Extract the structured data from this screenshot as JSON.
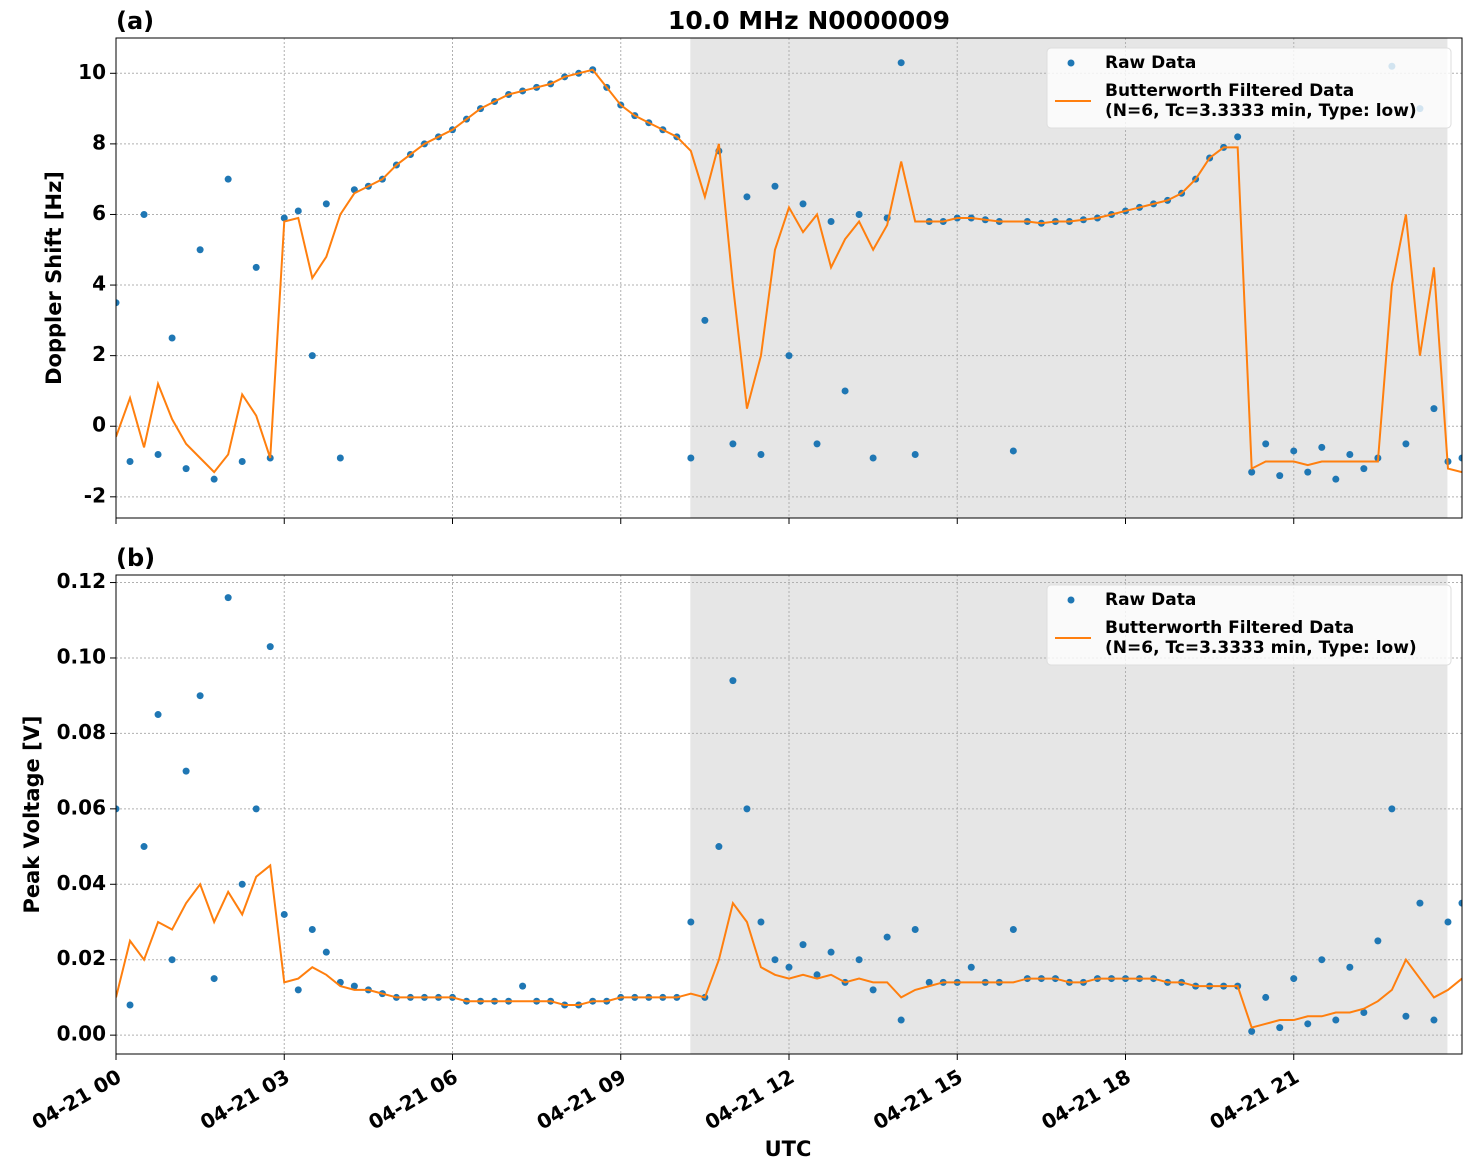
{
  "chart_data": [
    {
      "type": "line",
      "panel_label": "(a)",
      "title": "10.0 MHz N0000009",
      "ylabel": "Doppler Shift [Hz]",
      "xlim": [
        0,
        24
      ],
      "xticks": [
        0,
        3,
        6,
        9,
        12,
        15,
        18,
        21
      ],
      "ylim": [
        -2.6,
        11
      ],
      "yticks": [
        -2,
        0,
        2,
        4,
        6,
        8,
        10
      ],
      "grid": true,
      "shade": [
        10.24,
        23.74
      ],
      "shade_color": "#e6e6e6",
      "legend": "upper right",
      "x": [
        0,
        0.25,
        0.5,
        0.75,
        1,
        1.25,
        1.5,
        1.75,
        2,
        2.25,
        2.5,
        2.75,
        3,
        3.25,
        3.5,
        3.75,
        4,
        4.25,
        4.5,
        4.75,
        5,
        5.25,
        5.5,
        5.75,
        6,
        6.25,
        6.5,
        6.75,
        7,
        7.25,
        7.5,
        7.75,
        8,
        8.25,
        8.5,
        8.75,
        9,
        9.25,
        9.5,
        9.75,
        10,
        10.25,
        10.5,
        10.75,
        11,
        11.25,
        11.5,
        11.75,
        12,
        12.25,
        12.5,
        12.75,
        13,
        13.25,
        13.5,
        13.75,
        14,
        14.25,
        14.5,
        14.75,
        15,
        15.25,
        15.5,
        15.75,
        16,
        16.25,
        16.5,
        16.75,
        17,
        17.25,
        17.5,
        17.75,
        18,
        18.25,
        18.5,
        18.75,
        19,
        19.25,
        19.5,
        19.75,
        20,
        20.25,
        20.5,
        20.75,
        21,
        21.25,
        21.5,
        21.75,
        22,
        22.25,
        22.5,
        22.75,
        23,
        23.25,
        23.5,
        23.75,
        24
      ],
      "series": [
        {
          "name": "Raw Data",
          "color": "#1f77b4",
          "style": "points",
          "values": [
            3.5,
            -1.0,
            6.0,
            -0.8,
            2.5,
            -1.2,
            5.0,
            -1.5,
            7.0,
            -1.0,
            4.5,
            -0.9,
            5.9,
            6.1,
            2.0,
            6.3,
            -0.9,
            6.7,
            6.8,
            7.0,
            7.4,
            7.7,
            8.0,
            8.2,
            8.4,
            8.7,
            9.0,
            9.2,
            9.4,
            9.5,
            9.6,
            9.7,
            9.9,
            10.0,
            10.1,
            9.6,
            9.1,
            8.8,
            8.6,
            8.4,
            8.2,
            -0.9,
            3.0,
            7.8,
            -0.5,
            6.5,
            -0.8,
            6.8,
            2.0,
            6.3,
            -0.5,
            5.8,
            1.0,
            6.0,
            -0.9,
            5.9,
            10.3,
            -0.8,
            5.8,
            5.8,
            5.9,
            5.9,
            5.85,
            5.8,
            -0.7,
            5.8,
            5.75,
            5.8,
            5.8,
            5.85,
            5.9,
            6.0,
            6.1,
            6.2,
            6.3,
            6.4,
            6.6,
            7.0,
            7.6,
            7.9,
            8.2,
            -1.3,
            -0.5,
            -1.4,
            -0.7,
            -1.3,
            -0.6,
            -1.5,
            -0.8,
            -1.2,
            -0.9,
            10.2,
            -0.5,
            9.0,
            0.5,
            -1.0,
            -0.9
          ]
        },
        {
          "name": "Butterworth Filtered Data\n(N=6, Tc=3.3333 min, Type: low)",
          "color": "#ff7f0e",
          "style": "line",
          "values": [
            -0.3,
            0.8,
            -0.6,
            1.2,
            0.2,
            -0.5,
            -0.9,
            -1.3,
            -0.8,
            0.9,
            0.3,
            -0.9,
            5.8,
            5.9,
            4.2,
            4.8,
            6.0,
            6.6,
            6.8,
            7.0,
            7.4,
            7.7,
            8.0,
            8.2,
            8.4,
            8.7,
            9.0,
            9.2,
            9.4,
            9.5,
            9.6,
            9.7,
            9.9,
            10.0,
            10.1,
            9.6,
            9.1,
            8.8,
            8.6,
            8.4,
            8.2,
            7.8,
            6.5,
            8.0,
            4.0,
            0.5,
            2.0,
            5.0,
            6.2,
            5.5,
            6.0,
            4.5,
            5.3,
            5.8,
            5.0,
            5.7,
            7.5,
            5.8,
            5.8,
            5.8,
            5.9,
            5.9,
            5.85,
            5.8,
            5.8,
            5.8,
            5.75,
            5.8,
            5.8,
            5.85,
            5.9,
            6.0,
            6.1,
            6.2,
            6.3,
            6.4,
            6.6,
            7.0,
            7.6,
            7.9,
            7.9,
            -1.2,
            -1.0,
            -1.0,
            -1.0,
            -1.1,
            -1.0,
            -1.0,
            -1.0,
            -1.0,
            -1.0,
            4.0,
            6.0,
            2.0,
            4.5,
            -1.2,
            -1.3
          ]
        }
      ]
    },
    {
      "type": "line",
      "panel_label": "(b)",
      "ylabel": "Peak Voltage [V]",
      "xlabel": "UTC",
      "xlim": [
        0,
        24
      ],
      "xticks": [
        {
          "value": 0,
          "label": "04-21 00"
        },
        {
          "value": 3,
          "label": "04-21 03"
        },
        {
          "value": 6,
          "label": "04-21 06"
        },
        {
          "value": 9,
          "label": "04-21 09"
        },
        {
          "value": 12,
          "label": "04-21 12"
        },
        {
          "value": 15,
          "label": "04-21 15"
        },
        {
          "value": 18,
          "label": "04-21 18"
        },
        {
          "value": 21,
          "label": "04-21 21"
        }
      ],
      "ylim": [
        -0.005,
        0.122
      ],
      "yticks": [
        {
          "value": 0,
          "label": "0.00"
        },
        0.02,
        0.04,
        0.06,
        0.08,
        {
          "value": 0.1,
          "label": "0.10"
        },
        0.12
      ],
      "grid": true,
      "shade": [
        10.24,
        23.74
      ],
      "shade_color": "#e6e6e6",
      "legend": "upper right",
      "x": [
        0,
        0.25,
        0.5,
        0.75,
        1,
        1.25,
        1.5,
        1.75,
        2,
        2.25,
        2.5,
        2.75,
        3,
        3.25,
        3.5,
        3.75,
        4,
        4.25,
        4.5,
        4.75,
        5,
        5.25,
        5.5,
        5.75,
        6,
        6.25,
        6.5,
        6.75,
        7,
        7.25,
        7.5,
        7.75,
        8,
        8.25,
        8.5,
        8.75,
        9,
        9.25,
        9.5,
        9.75,
        10,
        10.25,
        10.5,
        10.75,
        11,
        11.25,
        11.5,
        11.75,
        12,
        12.25,
        12.5,
        12.75,
        13,
        13.25,
        13.5,
        13.75,
        14,
        14.25,
        14.5,
        14.75,
        15,
        15.25,
        15.5,
        15.75,
        16,
        16.25,
        16.5,
        16.75,
        17,
        17.25,
        17.5,
        17.75,
        18,
        18.25,
        18.5,
        18.75,
        19,
        19.25,
        19.5,
        19.75,
        20,
        20.25,
        20.5,
        20.75,
        21,
        21.25,
        21.5,
        21.75,
        22,
        22.25,
        22.5,
        22.75,
        23,
        23.25,
        23.5,
        23.75,
        24
      ],
      "series": [
        {
          "name": "Raw Data",
          "color": "#1f77b4",
          "style": "points",
          "values": [
            0.06,
            0.008,
            0.05,
            0.085,
            0.02,
            0.07,
            0.09,
            0.015,
            0.116,
            0.04,
            0.06,
            0.103,
            0.032,
            0.012,
            0.028,
            0.022,
            0.014,
            0.013,
            0.012,
            0.011,
            0.01,
            0.01,
            0.01,
            0.01,
            0.01,
            0.009,
            0.009,
            0.009,
            0.009,
            0.013,
            0.009,
            0.009,
            0.008,
            0.008,
            0.009,
            0.009,
            0.01,
            0.01,
            0.01,
            0.01,
            0.01,
            0.03,
            0.01,
            0.05,
            0.094,
            0.06,
            0.03,
            0.02,
            0.018,
            0.024,
            0.016,
            0.022,
            0.014,
            0.02,
            0.012,
            0.026,
            0.004,
            0.028,
            0.014,
            0.014,
            0.014,
            0.018,
            0.014,
            0.014,
            0.028,
            0.015,
            0.015,
            0.015,
            0.014,
            0.014,
            0.015,
            0.015,
            0.015,
            0.015,
            0.015,
            0.014,
            0.014,
            0.013,
            0.013,
            0.013,
            0.013,
            0.001,
            0.01,
            0.002,
            0.015,
            0.003,
            0.02,
            0.004,
            0.018,
            0.006,
            0.025,
            0.06,
            0.005,
            0.035,
            0.004,
            0.03,
            0.035
          ]
        },
        {
          "name": "Butterworth Filtered Data\n(N=6, Tc=3.3333 min, Type: low)",
          "color": "#ff7f0e",
          "style": "line",
          "values": [
            0.01,
            0.025,
            0.02,
            0.03,
            0.028,
            0.035,
            0.04,
            0.03,
            0.038,
            0.032,
            0.042,
            0.045,
            0.014,
            0.015,
            0.018,
            0.016,
            0.013,
            0.012,
            0.012,
            0.011,
            0.01,
            0.01,
            0.01,
            0.01,
            0.01,
            0.009,
            0.009,
            0.009,
            0.009,
            0.009,
            0.009,
            0.009,
            0.008,
            0.008,
            0.009,
            0.009,
            0.01,
            0.01,
            0.01,
            0.01,
            0.01,
            0.011,
            0.01,
            0.02,
            0.035,
            0.03,
            0.018,
            0.016,
            0.015,
            0.016,
            0.015,
            0.016,
            0.014,
            0.015,
            0.014,
            0.014,
            0.01,
            0.012,
            0.013,
            0.014,
            0.014,
            0.014,
            0.014,
            0.014,
            0.014,
            0.015,
            0.015,
            0.015,
            0.014,
            0.014,
            0.015,
            0.015,
            0.015,
            0.015,
            0.015,
            0.014,
            0.014,
            0.013,
            0.013,
            0.013,
            0.013,
            0.002,
            0.003,
            0.004,
            0.004,
            0.005,
            0.005,
            0.006,
            0.006,
            0.007,
            0.009,
            0.012,
            0.02,
            0.015,
            0.01,
            0.012,
            0.015
          ]
        }
      ]
    }
  ]
}
